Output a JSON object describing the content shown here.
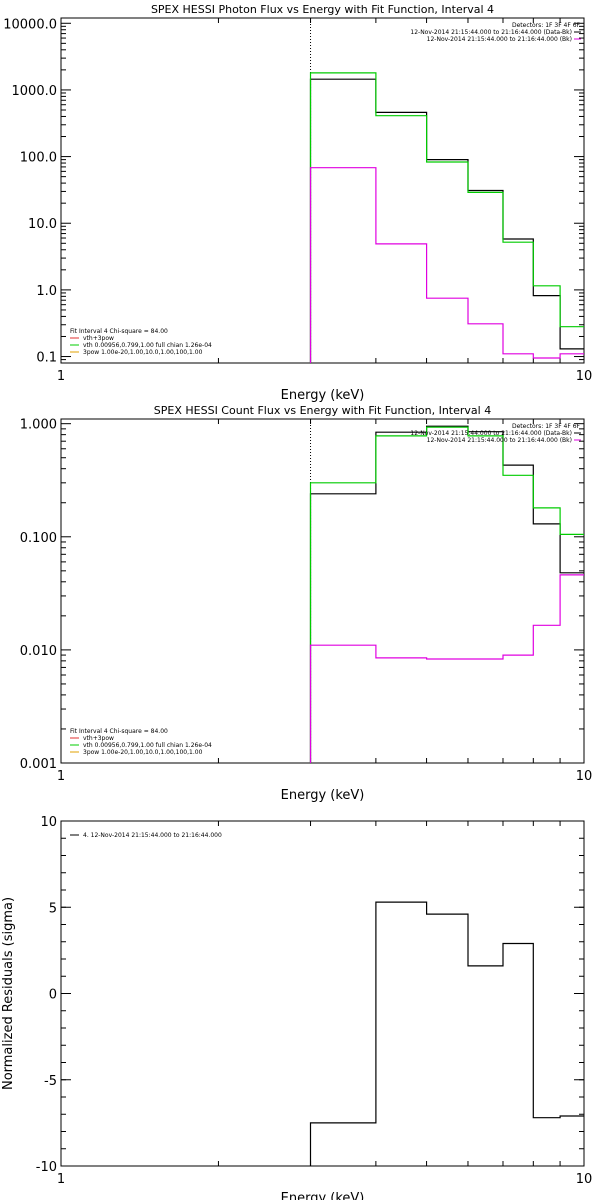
{
  "chart_data": [
    {
      "type": "line",
      "title": "SPEX HESSI Photon Flux vs Energy with Fit Function, Interval 4",
      "xlabel": "Energy (keV)",
      "ylabel": "",
      "xscale": "log",
      "yscale": "log",
      "xlim": [
        1,
        10
      ],
      "ylim": [
        0.08,
        12000
      ],
      "xticks": [
        {
          "v": 1,
          "label": "1"
        },
        {
          "v": 10,
          "label": "10"
        }
      ],
      "yticks": [
        {
          "v": 0.1,
          "label": "0.1"
        },
        {
          "v": 1,
          "label": "1.0"
        },
        {
          "v": 10,
          "label": "10.0"
        },
        {
          "v": 100,
          "label": "100.0"
        },
        {
          "v": 1000,
          "label": "1000.0"
        },
        {
          "v": 10000,
          "label": "10000.0"
        }
      ],
      "vline": 3,
      "legend_right": [
        {
          "text": "Detectors: 1F 3F 4F 6F",
          "color": "#000000"
        },
        {
          "text": "12-Nov-2014 21:15:44.000 to 21:16:44.000 (Data-Bk)",
          "color": "#000000"
        },
        {
          "text": "12-Nov-2014 21:15:44.000 to 21:16:44.000 (Bk)",
          "color": "#e000e0"
        }
      ],
      "legend_left": [
        {
          "text": "Fit Interval 4   Chi-square = 84.00",
          "color": ""
        },
        {
          "text": "vth+3pow",
          "color": "#e03030"
        },
        {
          "text": "vth 0.00956,0.799,1.00  full chian 1.26e-04",
          "color": "#00cc00"
        },
        {
          "text": "3pow 1.00e-20,1.00,10.0,1.00,100,1.00",
          "color": "#e0a000"
        }
      ],
      "edges": [
        3,
        4,
        5,
        6,
        7,
        8,
        9,
        10
      ],
      "series": [
        {
          "name": "Data-Bk",
          "color": "#000000",
          "values": [
            1450,
            460,
            90,
            31,
            5.8,
            0.82,
            0.13
          ]
        },
        {
          "name": "Fit",
          "color": "#00cc00",
          "values": [
            1800,
            410,
            83,
            29,
            5.2,
            1.15,
            0.28
          ]
        },
        {
          "name": "Bk",
          "color": "#e000e0",
          "values": [
            68,
            4.9,
            0.75,
            0.31,
            0.11,
            0.095,
            0.11
          ]
        }
      ]
    },
    {
      "type": "line",
      "title": "SPEX HESSI Count Flux vs Energy with Fit Function, Interval 4",
      "xlabel": "Energy (keV)",
      "ylabel": "",
      "xscale": "log",
      "yscale": "log",
      "xlim": [
        1,
        10
      ],
      "ylim": [
        0.001,
        1.1
      ],
      "xticks": [
        {
          "v": 1,
          "label": "1"
        },
        {
          "v": 10,
          "label": "10"
        }
      ],
      "yticks": [
        {
          "v": 0.001,
          "label": "0.001"
        },
        {
          "v": 0.01,
          "label": "0.010"
        },
        {
          "v": 0.1,
          "label": "0.100"
        },
        {
          "v": 1,
          "label": "1.000"
        }
      ],
      "vline": 3,
      "legend_right": [
        {
          "text": "Detectors: 1F 3F 4F 6F",
          "color": "#000000"
        },
        {
          "text": "12-Nov-2014 21:15:44.000 to 21:16:44.000 (Data-Bk)",
          "color": "#000000"
        },
        {
          "text": "12-Nov-2014 21:15:44.000 to 21:16:44.000 (Bk)",
          "color": "#e000e0"
        }
      ],
      "legend_left": [
        {
          "text": "Fit Interval 4   Chi-square = 84.00",
          "color": ""
        },
        {
          "text": "vth+3pow",
          "color": "#e03030"
        },
        {
          "text": "vth 0.00956,0.799,1.00  full chian 1.26e-04",
          "color": "#00cc00"
        },
        {
          "text": "3pow 1.00e-20,1.00,10.0,1.00,100,1.00",
          "color": "#e0a000"
        }
      ],
      "edges": [
        3,
        4,
        5,
        6,
        7,
        8,
        9,
        10
      ],
      "series": [
        {
          "name": "Data-Bk",
          "color": "#000000",
          "values": [
            0.24,
            0.84,
            0.95,
            0.85,
            0.43,
            0.13,
            0.048
          ]
        },
        {
          "name": "Fit",
          "color": "#00cc00",
          "values": [
            0.3,
            0.78,
            0.93,
            0.78,
            0.35,
            0.18,
            0.105
          ]
        },
        {
          "name": "Bk",
          "color": "#e000e0",
          "values": [
            0.011,
            0.0085,
            0.0083,
            0.0083,
            0.009,
            0.0165,
            0.046
          ]
        }
      ]
    },
    {
      "type": "line",
      "title": "",
      "xlabel": "Energy (keV)",
      "ylabel": "Normalized Residuals (sigma)",
      "xscale": "log",
      "yscale": "linear",
      "xlim": [
        1,
        10
      ],
      "ylim": [
        -10,
        10
      ],
      "xticks": [
        {
          "v": 1,
          "label": "1"
        },
        {
          "v": 10,
          "label": "10"
        }
      ],
      "yticks": [
        {
          "v": -10,
          "label": "-10"
        },
        {
          "v": -5,
          "label": "-5"
        },
        {
          "v": 0,
          "label": "0"
        },
        {
          "v": 5,
          "label": "5"
        },
        {
          "v": 10,
          "label": "10"
        }
      ],
      "legend_left": [
        {
          "text": "4. 12-Nov-2014 21:15:44.000 to 21:16:44.000",
          "color": "#000000"
        }
      ],
      "edges": [
        3,
        4,
        5,
        6,
        7,
        8,
        9,
        10
      ],
      "series": [
        {
          "name": "",
          "color": "#000000",
          "values": [
            -7.5,
            5.3,
            4.6,
            1.6,
            2.9,
            -7.2,
            -7.1
          ]
        }
      ]
    }
  ]
}
